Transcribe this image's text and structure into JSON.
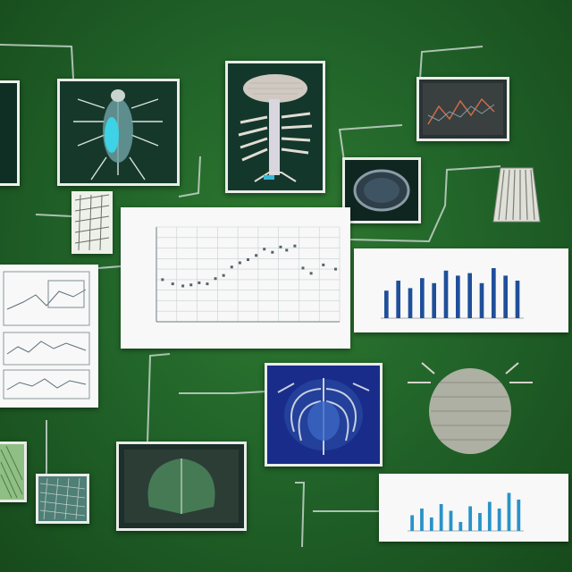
{
  "chart_data": {
    "type": "scatter",
    "title": "",
    "xlabel": "",
    "ylabel": "",
    "grid": true,
    "series": [
      {
        "points": [
          [
            0.3,
            4
          ],
          [
            0.8,
            3.6
          ],
          [
            1.3,
            3.4
          ],
          [
            1.7,
            3.5
          ],
          [
            2.1,
            3.7
          ],
          [
            2.5,
            3.6
          ],
          [
            2.9,
            4.1
          ],
          [
            3.3,
            4.4
          ],
          [
            3.7,
            5.2
          ],
          [
            4.1,
            5.6
          ],
          [
            4.5,
            5.9
          ],
          [
            4.9,
            6.3
          ],
          [
            5.3,
            6.9
          ],
          [
            5.7,
            6.6
          ],
          [
            6.1,
            7.1
          ],
          [
            6.4,
            6.8
          ],
          [
            6.8,
            7.2
          ],
          [
            7.2,
            5.1
          ],
          [
            7.6,
            4.6
          ],
          [
            8.2,
            5.4
          ],
          [
            8.8,
            5.0
          ]
        ]
      }
    ],
    "xlim": [
      0,
      9
    ],
    "ylim": [
      0,
      9
    ]
  },
  "bar_panels": [
    {
      "type": "bar",
      "values": [
        0.55,
        0.75,
        0.6,
        0.8,
        0.7,
        0.95,
        0.85,
        0.9,
        0.7,
        1.0,
        0.85,
        0.75
      ],
      "color": "#1f4f9a"
    },
    {
      "type": "bar",
      "values": [
        0.35,
        0.5,
        0.3,
        0.6,
        0.45,
        0.2,
        0.55,
        0.4,
        0.65,
        0.5,
        0.85,
        0.7
      ],
      "color": "#2a92c8"
    }
  ],
  "colors": {
    "background": "#22652a",
    "frame": "#f3f5f3",
    "wire": "#c9d6cc"
  }
}
